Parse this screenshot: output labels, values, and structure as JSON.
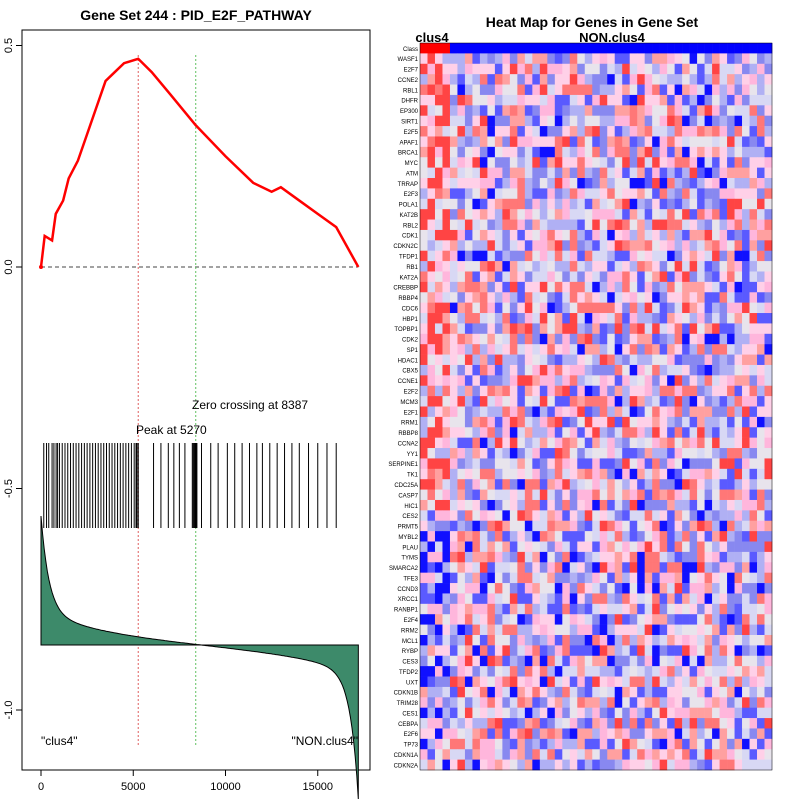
{
  "chart_data": [
    {
      "type": "line",
      "title": "Gene Set  244 : PID_E2F_PATHWAY",
      "xlim": [
        0,
        17200
      ],
      "ylim": [
        -1.1,
        0.55
      ],
      "x_ticks": [
        0,
        5000,
        10000,
        15000
      ],
      "x_tick_labels": [
        "0",
        "5000",
        "10000",
        "15000"
      ],
      "y_ticks": [
        0.5,
        0.0,
        -0.5,
        -1.0
      ],
      "y_tick_labels": [
        "0.5",
        "0.0",
        "-0.5",
        "-1.0"
      ],
      "running_es": {
        "x": [
          0,
          200,
          600,
          800,
          1200,
          1500,
          2000,
          2500,
          3000,
          3500,
          4000,
          4500,
          5270,
          6000,
          7000,
          8387,
          10000,
          11500,
          12500,
          13000,
          14000,
          15000,
          16000,
          17200
        ],
        "y": [
          0,
          0.07,
          0.06,
          0.12,
          0.15,
          0.2,
          0.24,
          0.3,
          0.36,
          0.42,
          0.44,
          0.46,
          0.47,
          0.44,
          0.39,
          0.32,
          0.25,
          0.19,
          0.17,
          0.18,
          0.15,
          0.12,
          0.09,
          0.0
        ]
      },
      "hit_positions": [
        150,
        300,
        420,
        600,
        700,
        820,
        900,
        1000,
        1150,
        1300,
        1450,
        1600,
        1750,
        1900,
        2050,
        2200,
        2350,
        2500,
        2650,
        2800,
        2950,
        3100,
        3250,
        3400,
        3550,
        3700,
        3850,
        4000,
        4150,
        4300,
        4450,
        4600,
        4750,
        4900,
        5050,
        5150,
        5200,
        5270,
        6100,
        6500,
        6900,
        7200,
        7500,
        7800,
        8200,
        8250,
        8300,
        8350,
        8400,
        8450,
        8700,
        9200,
        9600,
        10100,
        10500,
        10900,
        11300,
        11700,
        12000,
        12400,
        12800,
        13200,
        13600,
        14000,
        14500,
        15000,
        15500,
        16000
      ],
      "peak_label": "Peak at 5270",
      "peak_x": 5270,
      "zero_cross_label": "Zero crossing at 8387",
      "zero_cross_x": 8387,
      "left_label": "\"clus4\"",
      "right_label": "\"NON.clus4\"",
      "colors": {
        "es": "#ff0000",
        "peak": "#e06060",
        "zero": "#60c060",
        "metric_fill": "#3d8a6a"
      }
    },
    {
      "type": "heatmap",
      "title": "Heat Map for Genes in Gene Set",
      "class_labels": [
        "clus4",
        "NON.clus4"
      ],
      "class_counts": [
        4,
        43
      ],
      "class_colors": [
        "#ff0000",
        "#0000ff"
      ],
      "row_labels": [
        "Class",
        "WASF1",
        "E2F7",
        "CCNE2",
        "RBL1",
        "DHFR",
        "EP300",
        "SIRT1",
        "E2F5",
        "APAF1",
        "BRCA1",
        "MYC",
        "ATM",
        "TRRAP",
        "E2F3",
        "POLA1",
        "KAT2B",
        "RBL2",
        "CDK1",
        "CDKN2C",
        "TFDP1",
        "RB1",
        "KAT2A",
        "CREBBP",
        "RBBP4",
        "CDC6",
        "HBP1",
        "TOPBP1",
        "CDK2",
        "SP1",
        "HDAC1",
        "CBX5",
        "CCNE1",
        "E2F2",
        "MCM3",
        "E2F1",
        "RRM1",
        "RBBP8",
        "CCNA2",
        "YY1",
        "SERPINE1",
        "TK1",
        "CDC25A",
        "CASP7",
        "HIC1",
        "CES2",
        "PRMT5",
        "MYBL2",
        "PLAU",
        "TYMS",
        "SMARCA2",
        "TFE3",
        "CCND3",
        "XRCC1",
        "RANBP1",
        "E2F4",
        "RRM2",
        "MCL1",
        "RYBP",
        "CES3",
        "TFDP2",
        "UXT",
        "CDKN1B",
        "TRIM28",
        "CES1",
        "CEBPA",
        "E2F6",
        "TP73",
        "CDKN1A",
        "CDKN2A"
      ]
    }
  ]
}
